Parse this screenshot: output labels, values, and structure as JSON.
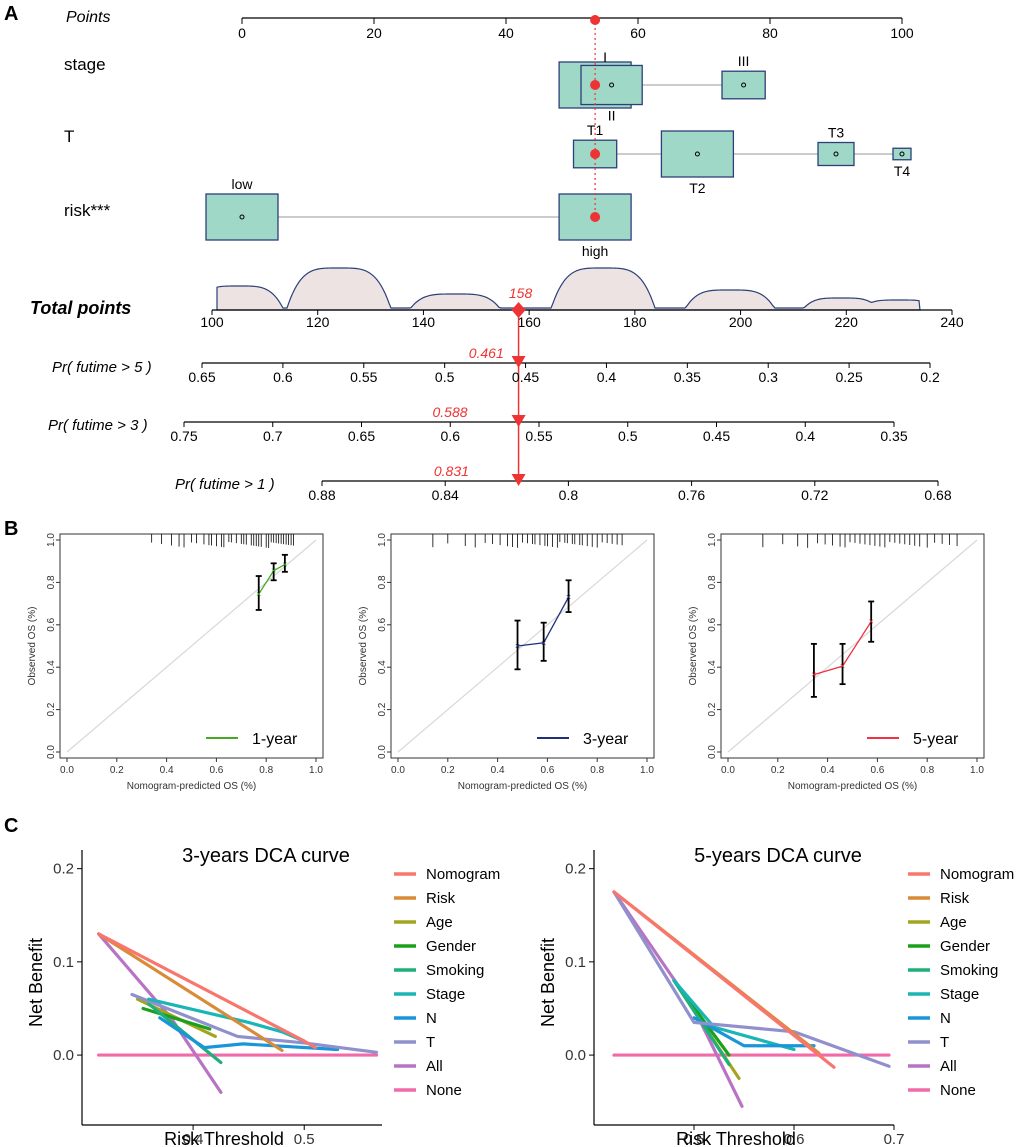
{
  "panel_labels": {
    "a": "A",
    "b": "B",
    "c": "C"
  },
  "colors": {
    "box_fill": "#9fd8c6",
    "box_stroke": "#2d3f7a",
    "marker": "#ee3333",
    "density_fill": "#ede3e3",
    "density_stroke": "#2d3f7a",
    "diag": "#d8d8d8",
    "cal_1": "#44aa22",
    "cal_3": "#20307a",
    "cal_5": "#ee3344"
  },
  "chart_data": [
    {
      "id": "nomogram",
      "type": "nomogram",
      "points_label": "Points",
      "points_ticks": [
        "0",
        "20",
        "40",
        "60",
        "80",
        "100"
      ],
      "points_range": [
        0,
        100
      ],
      "variables": [
        {
          "name": "stage",
          "levels": [
            {
              "label": "I",
              "points": 53.5,
              "size": 1.0
            },
            {
              "label": "II",
              "points": 56.0,
              "size": 0.85
            },
            {
              "label": "III",
              "points": 76.0,
              "size": 0.6
            }
          ]
        },
        {
          "name": "T",
          "levels": [
            {
              "label": "T1",
              "points": 53.5,
              "size": 0.6
            },
            {
              "label": "T2",
              "points": 69.0,
              "size": 1.0
            },
            {
              "label": "T3",
              "points": 90.0,
              "size": 0.5
            },
            {
              "label": "T4",
              "points": 100.0,
              "size": 0.25
            }
          ]
        },
        {
          "name": "risk***",
          "levels": [
            {
              "label": "low",
              "points": 0,
              "size": 1.0
            },
            {
              "label": "high",
              "points": 53.5,
              "size": 1.0
            }
          ]
        }
      ],
      "selected_points": 53.5,
      "total_label": "Total points",
      "total_ticks": [
        "100",
        "120",
        "140",
        "160",
        "180",
        "200",
        "220",
        "240"
      ],
      "total_range": [
        100,
        240
      ],
      "total_value": 158,
      "total_value_label": "158",
      "density_bumps": [
        {
          "center": 105,
          "width": 6,
          "height": 0.55
        },
        {
          "center": 124,
          "width": 7,
          "height": 1.0
        },
        {
          "center": 146,
          "width": 6,
          "height": 0.35
        },
        {
          "center": 174,
          "width": 7,
          "height": 1.0
        },
        {
          "center": 198,
          "width": 6,
          "height": 0.45
        },
        {
          "center": 219,
          "width": 5,
          "height": 0.25
        },
        {
          "center": 230,
          "width": 5,
          "height": 0.2
        }
      ],
      "probability_axes": [
        {
          "label": "Pr( futime > 5 )",
          "ticks": [
            "0.65",
            "0.6",
            "0.55",
            "0.5",
            "0.45",
            "0.4",
            "0.35",
            "0.3",
            "0.25",
            "0.2"
          ],
          "value": 0.461,
          "value_label": "0.461"
        },
        {
          "label": "Pr( futime > 3 )",
          "ticks": [
            "0.75",
            "0.7",
            "0.65",
            "0.6",
            "0.55",
            "0.5",
            "0.45",
            "0.4",
            "0.35"
          ],
          "value": 0.588,
          "value_label": "0.588"
        },
        {
          "label": "Pr( futime > 1 )",
          "ticks": [
            "0.88",
            "0.84",
            "0.8",
            "0.76",
            "0.72",
            "0.68"
          ],
          "value": 0.831,
          "value_label": "0.831"
        }
      ]
    },
    {
      "id": "calibration",
      "type": "line",
      "xlabel": "Nomogram-predicted OS (%)",
      "ylabel": "Observed OS (%)",
      "xlim": [
        0,
        1
      ],
      "ylim": [
        0,
        1
      ],
      "ticks": [
        "0.0",
        "0.2",
        "0.4",
        "0.6",
        "0.8",
        "1.0"
      ],
      "panels": [
        {
          "legend": "1-year",
          "color_key": "cal_1",
          "points": [
            {
              "x": 0.77,
              "y": 0.745,
              "lo": 0.67,
              "hi": 0.83
            },
            {
              "x": 0.83,
              "y": 0.855,
              "lo": 0.81,
              "hi": 0.89
            },
            {
              "x": 0.875,
              "y": 0.885,
              "lo": 0.85,
              "hi": 0.93
            }
          ],
          "rug": [
            0.34,
            0.38,
            0.42,
            0.45,
            0.47,
            0.5,
            0.52,
            0.55,
            0.57,
            0.58,
            0.6,
            0.62,
            0.63,
            0.65,
            0.66,
            0.68,
            0.7,
            0.71,
            0.72,
            0.74,
            0.75,
            0.76,
            0.77,
            0.78,
            0.8,
            0.81,
            0.82,
            0.83,
            0.84,
            0.85,
            0.86,
            0.87,
            0.88,
            0.89,
            0.9,
            0.91
          ]
        },
        {
          "legend": "3-year",
          "color_key": "cal_3",
          "points": [
            {
              "x": 0.48,
              "y": 0.5,
              "lo": 0.39,
              "hi": 0.62
            },
            {
              "x": 0.585,
              "y": 0.515,
              "lo": 0.43,
              "hi": 0.61
            },
            {
              "x": 0.685,
              "y": 0.73,
              "lo": 0.66,
              "hi": 0.81
            }
          ],
          "rug": [
            0.14,
            0.2,
            0.27,
            0.31,
            0.35,
            0.38,
            0.41,
            0.44,
            0.46,
            0.48,
            0.5,
            0.52,
            0.54,
            0.55,
            0.57,
            0.59,
            0.6,
            0.62,
            0.64,
            0.65,
            0.67,
            0.68,
            0.7,
            0.71,
            0.73,
            0.74,
            0.76,
            0.78,
            0.8,
            0.82,
            0.84,
            0.86,
            0.88,
            0.9
          ]
        },
        {
          "legend": "5-year",
          "color_key": "cal_5",
          "points": [
            {
              "x": 0.345,
              "y": 0.365,
              "lo": 0.26,
              "hi": 0.51
            },
            {
              "x": 0.46,
              "y": 0.405,
              "lo": 0.32,
              "hi": 0.51
            },
            {
              "x": 0.575,
              "y": 0.615,
              "lo": 0.52,
              "hi": 0.71
            }
          ],
          "rug": [
            0.14,
            0.22,
            0.28,
            0.32,
            0.36,
            0.39,
            0.42,
            0.45,
            0.47,
            0.49,
            0.51,
            0.53,
            0.55,
            0.57,
            0.59,
            0.61,
            0.63,
            0.65,
            0.67,
            0.69,
            0.71,
            0.73,
            0.75,
            0.77,
            0.8,
            0.83,
            0.86,
            0.89,
            0.92
          ]
        }
      ]
    },
    {
      "id": "dca",
      "type": "line",
      "ylabel": "Net Benefit",
      "xlabel": "Risk Threshold",
      "legend": [
        {
          "name": "Nomogram",
          "color": "#f8766d"
        },
        {
          "name": "Risk",
          "color": "#d98b38"
        },
        {
          "name": "Age",
          "color": "#a3a520"
        },
        {
          "name": "Gender",
          "color": "#1ba01b"
        },
        {
          "name": "Smoking",
          "color": "#1fb07a"
        },
        {
          "name": "Stage",
          "color": "#1ab5b5"
        },
        {
          "name": "N",
          "color": "#1a96d8"
        },
        {
          "name": "T",
          "color": "#9090cc"
        },
        {
          "name": "All",
          "color": "#b873c4"
        },
        {
          "name": "None",
          "color": "#f26aa8"
        }
      ],
      "panels": [
        {
          "title": "3-years DCA curve",
          "xlim": [
            0.3,
            0.57
          ],
          "ylim": [
            -0.075,
            0.22
          ],
          "xticks": [
            {
              "v": 0.4,
              "label": "0.4"
            },
            {
              "v": 0.5,
              "label": "0.5"
            }
          ],
          "yticks": [
            {
              "v": 0.0,
              "label": "0.0"
            },
            {
              "v": 0.1,
              "label": "0.1"
            },
            {
              "v": 0.2,
              "label": "0.2"
            }
          ],
          "series": [
            {
              "name": "None",
              "points": [
                [
                  0.315,
                  0
                ],
                [
                  0.565,
                  0
                ]
              ]
            },
            {
              "name": "All",
              "points": [
                [
                  0.315,
                  0.13
                ],
                [
                  0.38,
                  0.04
                ],
                [
                  0.425,
                  -0.04
                ]
              ]
            },
            {
              "name": "Age",
              "points": [
                [
                  0.35,
                  0.06
                ],
                [
                  0.42,
                  0.02
                ]
              ]
            },
            {
              "name": "Gender",
              "points": [
                [
                  0.355,
                  0.05
                ],
                [
                  0.415,
                  0.028
                ]
              ]
            },
            {
              "name": "Smoking",
              "points": [
                [
                  0.36,
                  0.055
                ],
                [
                  0.425,
                  -0.008
                ]
              ]
            },
            {
              "name": "N",
              "points": [
                [
                  0.37,
                  0.04
                ],
                [
                  0.41,
                  0.008
                ],
                [
                  0.445,
                  0.012
                ],
                [
                  0.53,
                  0.006
                ]
              ]
            },
            {
              "name": "T",
              "points": [
                [
                  0.345,
                  0.065
                ],
                [
                  0.44,
                  0.02
                ],
                [
                  0.5,
                  0.013
                ],
                [
                  0.565,
                  0.003
                ]
              ]
            },
            {
              "name": "Stage",
              "points": [
                [
                  0.36,
                  0.06
                ],
                [
                  0.45,
                  0.035
                ],
                [
                  0.48,
                  0.025
                ],
                [
                  0.5,
                  0.015
                ]
              ]
            },
            {
              "name": "Risk",
              "points": [
                [
                  0.315,
                  0.13
                ],
                [
                  0.48,
                  0.005
                ]
              ]
            },
            {
              "name": "Nomogram",
              "points": [
                [
                  0.315,
                  0.13
                ],
                [
                  0.5,
                  0.015
                ],
                [
                  0.51,
                  0.008
                ]
              ]
            }
          ]
        },
        {
          "title": "5-years DCA curve",
          "xlim": [
            0.4,
            0.7
          ],
          "ylim": [
            -0.075,
            0.22
          ],
          "xticks": [
            {
              "v": 0.5,
              "label": "0.5"
            },
            {
              "v": 0.6,
              "label": "0.6"
            },
            {
              "v": 0.7,
              "label": "0.7"
            }
          ],
          "yticks": [
            {
              "v": 0.0,
              "label": "0.0"
            },
            {
              "v": 0.1,
              "label": "0.1"
            },
            {
              "v": 0.2,
              "label": "0.2"
            }
          ],
          "series": [
            {
              "name": "None",
              "points": [
                [
                  0.42,
                  0
                ],
                [
                  0.695,
                  0
                ]
              ]
            },
            {
              "name": "All",
              "points": [
                [
                  0.42,
                  0.175
                ],
                [
                  0.5,
                  0.05
                ],
                [
                  0.548,
                  -0.055
                ]
              ]
            },
            {
              "name": "Age",
              "points": [
                [
                  0.48,
                  0.08
                ],
                [
                  0.545,
                  -0.025
                ]
              ]
            },
            {
              "name": "Gender",
              "points": [
                [
                  0.48,
                  0.08
                ],
                [
                  0.535,
                  0.0
                ]
              ]
            },
            {
              "name": "Smoking",
              "points": [
                [
                  0.48,
                  0.08
                ],
                [
                  0.535,
                  -0.01
                ]
              ]
            },
            {
              "name": "Stage",
              "points": [
                [
                  0.48,
                  0.08
                ],
                [
                  0.52,
                  0.03
                ],
                [
                  0.6,
                  0.006
                ]
              ]
            },
            {
              "name": "N",
              "points": [
                [
                  0.5,
                  0.04
                ],
                [
                  0.55,
                  0.01
                ],
                [
                  0.62,
                  0.01
                ]
              ]
            },
            {
              "name": "T",
              "points": [
                [
                  0.42,
                  0.175
                ],
                [
                  0.5,
                  0.035
                ],
                [
                  0.6,
                  0.025
                ],
                [
                  0.695,
                  -0.012
                ]
              ]
            },
            {
              "name": "Risk",
              "points": [
                [
                  0.42,
                  0.175
                ],
                [
                  0.625,
                  0.002
                ]
              ]
            },
            {
              "name": "Nomogram",
              "points": [
                [
                  0.42,
                  0.175
                ],
                [
                  0.64,
                  -0.013
                ]
              ]
            }
          ]
        }
      ]
    }
  ]
}
